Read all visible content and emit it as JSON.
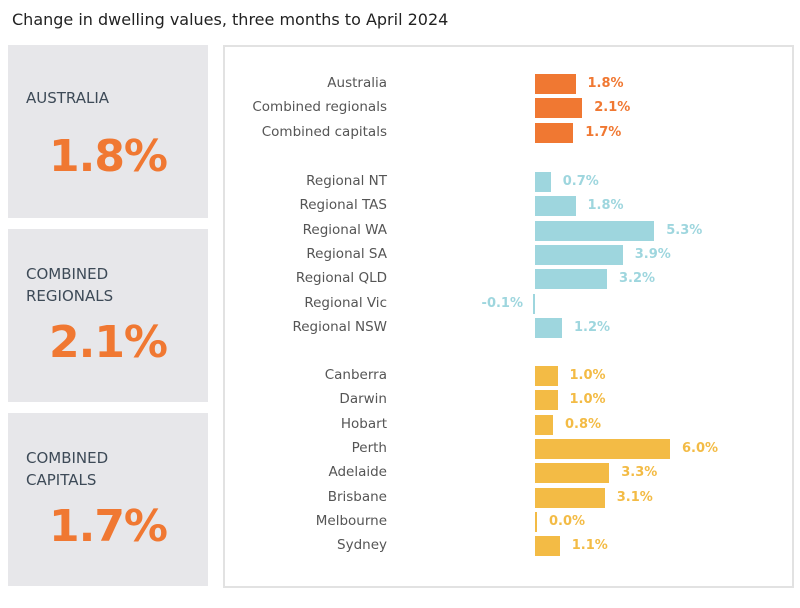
{
  "title": "Change in dwelling values, three months to April 2024",
  "cards": [
    {
      "label": "AUSTRALIA",
      "value": "1.8%"
    },
    {
      "label": "COMBINED\nREGIONALS",
      "value": "2.1%"
    },
    {
      "label": "COMBINED\nCAPITALS",
      "value": "1.7%"
    }
  ],
  "colors": {
    "headline": "#f07832",
    "regional": "#9ed6de",
    "capitals": "#f3bb45",
    "card_bg": "#e7e7ea"
  },
  "chart_data": {
    "type": "bar",
    "orientation": "horizontal",
    "title": "Change in dwelling values, three months to April 2024",
    "groups": [
      {
        "color": "#f07832",
        "categories": [
          "Australia",
          "Combined regionals",
          "Combined capitals"
        ],
        "values": [
          1.8,
          2.1,
          1.7
        ],
        "labels": [
          "1.8%",
          "2.1%",
          "1.7%"
        ]
      },
      {
        "color": "#9ed6de",
        "categories": [
          "Regional NT",
          "Regional TAS",
          "Regional WA",
          "Regional SA",
          "Regional QLD",
          "Regional Vic",
          "Regional NSW"
        ],
        "values": [
          0.7,
          1.8,
          5.3,
          3.9,
          3.2,
          -0.1,
          1.2
        ],
        "labels": [
          "0.7%",
          "1.8%",
          "5.3%",
          "3.9%",
          "3.2%",
          "-0.1%",
          "1.2%"
        ]
      },
      {
        "color": "#f3bb45",
        "categories": [
          "Canberra",
          "Darwin",
          "Hobart",
          "Perth",
          "Adelaide",
          "Brisbane",
          "Melbourne",
          "Sydney"
        ],
        "values": [
          1.0,
          1.0,
          0.8,
          6.0,
          3.3,
          3.1,
          0.0,
          1.1
        ],
        "labels": [
          "1.0%",
          "1.0%",
          "0.8%",
          "6.0%",
          "3.3%",
          "3.1%",
          "0.0%",
          "1.1%"
        ]
      }
    ],
    "grid": false
  }
}
